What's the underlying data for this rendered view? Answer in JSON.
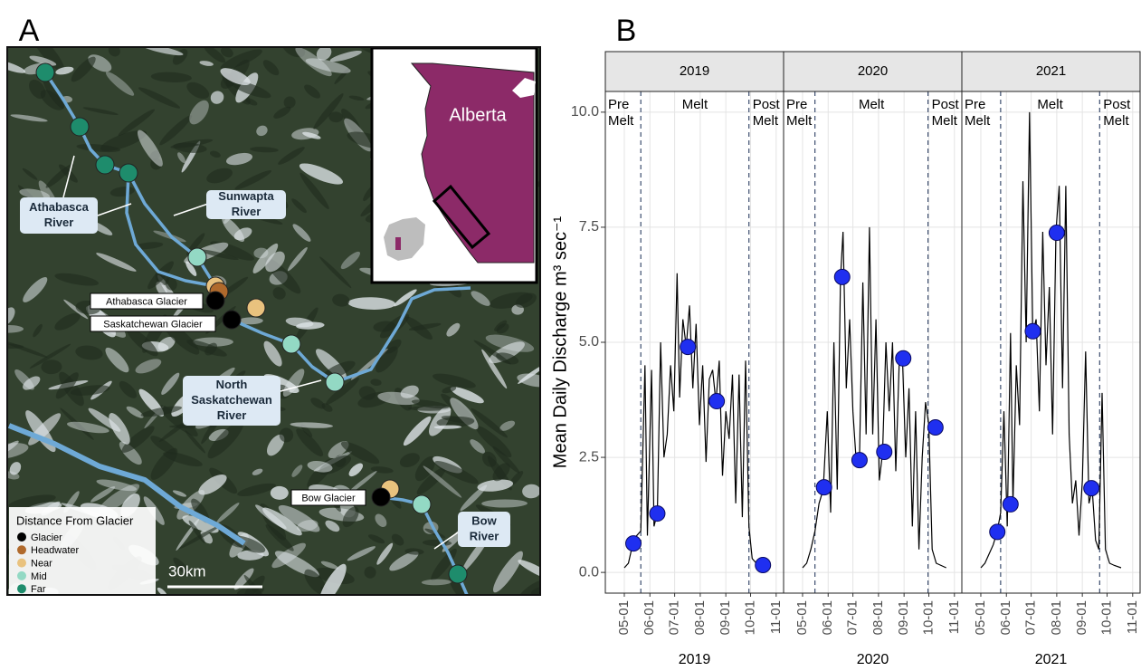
{
  "panels": [
    "A",
    "B"
  ],
  "map": {
    "legend_title": "Distance From Glacier",
    "legend": [
      {
        "name": "Glacier",
        "color": "#000000"
      },
      {
        "name": "Headwater",
        "color": "#b06a2c"
      },
      {
        "name": "Near",
        "color": "#e9c27e"
      },
      {
        "name": "Mid",
        "color": "#93d9c4"
      },
      {
        "name": "Far",
        "color": "#1e8c6c"
      }
    ],
    "scale_label": "30km",
    "inset_label": "Alberta",
    "rivers": [
      [
        "Athabasca",
        "River"
      ],
      [
        "Sunwapta",
        "River"
      ],
      [
        "North",
        "Saskatchewan",
        "River"
      ],
      [
        "Bow",
        "River"
      ]
    ],
    "glaciers": [
      "Athabasca Glacier",
      "Saskatchewan Glacier",
      "Bow Glacier"
    ]
  },
  "chart_data": {
    "type": "line",
    "ylabel": "Mean Daily Discharge m³ sec⁻¹",
    "ylim": [
      -0.45,
      10.45
    ],
    "yticks": [
      {
        "value": 0,
        "label": "0.0"
      },
      2.5,
      {
        "value": 5,
        "label": "5.0"
      },
      7.5,
      {
        "value": 10,
        "label": "10.0"
      }
    ],
    "grid": true,
    "line_color": "#000000",
    "sample_color": "#1f2ff0",
    "divider_color": "#3b4d6e",
    "facets": [
      {
        "title": "2019",
        "xlabel": "2019",
        "xlim": [
          "2019-04-08",
          "2019-11-10"
        ],
        "xticks": [
          {
            "value": "2019-05-01",
            "label": "05-01"
          },
          {
            "value": "2019-06-01",
            "label": "06-01"
          },
          {
            "value": "2019-07-01",
            "label": "07-01"
          },
          {
            "value": "2019-08-01",
            "label": "08-01"
          },
          {
            "value": "2019-09-01",
            "label": "09-01"
          },
          {
            "value": "2019-10-01",
            "label": "10-01"
          },
          {
            "value": "2019-11-01",
            "label": "11-01"
          }
        ],
        "phases": [
          [
            "Pre",
            "Melt"
          ],
          [
            "Melt"
          ],
          [
            "Post",
            "Melt"
          ]
        ],
        "dividers": [
          "2019-05-21",
          "2019-09-29"
        ],
        "x": [
          "2019-05-01",
          "2019-05-06",
          "2019-05-11",
          "2019-05-16",
          "2019-05-21",
          "2019-05-26",
          "2019-05-29",
          "2019-06-03",
          "2019-06-06",
          "2019-06-10",
          "2019-06-14",
          "2019-06-18",
          "2019-06-22",
          "2019-06-26",
          "2019-06-30",
          "2019-07-04",
          "2019-07-07",
          "2019-07-11",
          "2019-07-15",
          "2019-07-19",
          "2019-07-23",
          "2019-07-27",
          "2019-07-31",
          "2019-08-04",
          "2019-08-08",
          "2019-08-12",
          "2019-08-16",
          "2019-08-20",
          "2019-08-24",
          "2019-08-28",
          "2019-09-01",
          "2019-09-05",
          "2019-09-09",
          "2019-09-13",
          "2019-09-17",
          "2019-09-21",
          "2019-09-25",
          "2019-09-29",
          "2019-10-03",
          "2019-10-08",
          "2019-10-14",
          "2019-10-20"
        ],
        "values": [
          0.1,
          0.2,
          0.6,
          0.8,
          0.9,
          4.5,
          0.8,
          4.4,
          1.0,
          1.3,
          5.0,
          2.5,
          3.0,
          4.5,
          3.5,
          6.5,
          3.8,
          5.5,
          4.9,
          5.8,
          4.0,
          5.4,
          3.2,
          4.5,
          2.4,
          4.2,
          4.4,
          3.7,
          4.6,
          2.1,
          3.5,
          2.9,
          4.3,
          1.5,
          4.3,
          1.2,
          4.6,
          1.0,
          0.3,
          0.2,
          0.15,
          0.1
        ],
        "samples": {
          "x": [
            "2019-05-12",
            "2019-06-10",
            "2019-07-17",
            "2019-08-21",
            "2019-10-16"
          ],
          "values": [
            0.63,
            1.28,
            4.9,
            3.72,
            0.16
          ]
        }
      },
      {
        "title": "2020",
        "xlabel": "2020",
        "xlim": [
          "2020-04-08",
          "2020-11-10"
        ],
        "xticks": [
          {
            "value": "2020-05-01",
            "label": "05-01"
          },
          {
            "value": "2020-06-01",
            "label": "06-01"
          },
          {
            "value": "2020-07-01",
            "label": "07-01"
          },
          {
            "value": "2020-08-01",
            "label": "08-01"
          },
          {
            "value": "2020-09-01",
            "label": "09-01"
          },
          {
            "value": "2020-10-01",
            "label": "10-01"
          },
          {
            "value": "2020-11-01",
            "label": "11-01"
          }
        ],
        "phases": [
          [
            "Pre",
            "Melt"
          ],
          [
            "Melt"
          ],
          [
            "Post",
            "Melt"
          ]
        ],
        "dividers": [
          "2020-05-16",
          "2020-09-30"
        ],
        "x": [
          "2020-05-01",
          "2020-05-06",
          "2020-05-11",
          "2020-05-16",
          "2020-05-21",
          "2020-05-26",
          "2020-05-31",
          "2020-06-04",
          "2020-06-08",
          "2020-06-12",
          "2020-06-16",
          "2020-06-19",
          "2020-06-23",
          "2020-06-27",
          "2020-07-01",
          "2020-07-05",
          "2020-07-09",
          "2020-07-13",
          "2020-07-17",
          "2020-07-21",
          "2020-07-25",
          "2020-07-29",
          "2020-08-02",
          "2020-08-06",
          "2020-08-10",
          "2020-08-14",
          "2020-08-18",
          "2020-08-22",
          "2020-08-26",
          "2020-08-30",
          "2020-09-03",
          "2020-09-07",
          "2020-09-11",
          "2020-09-15",
          "2020-09-19",
          "2020-09-23",
          "2020-09-27",
          "2020-10-01",
          "2020-10-05",
          "2020-10-10",
          "2020-10-16",
          "2020-10-22"
        ],
        "values": [
          0.1,
          0.2,
          0.5,
          0.9,
          1.5,
          1.8,
          3.5,
          1.3,
          5.0,
          1.8,
          6.4,
          7.4,
          4.0,
          5.5,
          3.5,
          2.4,
          2.5,
          6.3,
          3.0,
          7.5,
          3.0,
          5.5,
          2.0,
          2.6,
          5.0,
          3.5,
          5.0,
          2.2,
          4.5,
          4.7,
          2.5,
          4.0,
          1.0,
          3.5,
          0.5,
          2.5,
          3.7,
          3.2,
          0.5,
          0.2,
          0.15,
          0.1
        ],
        "samples": {
          "x": [
            "2020-05-27",
            "2020-06-18",
            "2020-07-09",
            "2020-08-08",
            "2020-08-31",
            "2020-10-09"
          ],
          "values": [
            1.85,
            6.42,
            2.44,
            2.62,
            4.65,
            3.15
          ]
        }
      },
      {
        "title": "2021",
        "xlabel": "2021",
        "xlim": [
          "2021-04-08",
          "2021-11-10"
        ],
        "xticks": [
          {
            "value": "2021-05-01",
            "label": "05-01"
          },
          {
            "value": "2021-06-01",
            "label": "06-01"
          },
          {
            "value": "2021-07-01",
            "label": "07-01"
          },
          {
            "value": "2021-08-01",
            "label": "08-01"
          },
          {
            "value": "2021-09-01",
            "label": "09-01"
          },
          {
            "value": "2021-10-01",
            "label": "10-01"
          },
          {
            "value": "2021-11-01",
            "label": "11-01"
          }
        ],
        "phases": [
          [
            "Pre",
            "Melt"
          ],
          [
            "Melt"
          ],
          [
            "Post",
            "Melt"
          ]
        ],
        "dividers": [
          "2021-05-25",
          "2021-09-22"
        ],
        "x": [
          "2021-05-01",
          "2021-05-06",
          "2021-05-11",
          "2021-05-16",
          "2021-05-21",
          "2021-05-25",
          "2021-05-29",
          "2021-06-02",
          "2021-06-06",
          "2021-06-09",
          "2021-06-13",
          "2021-06-17",
          "2021-06-21",
          "2021-06-25",
          "2021-06-29",
          "2021-07-03",
          "2021-07-07",
          "2021-07-11",
          "2021-07-15",
          "2021-07-19",
          "2021-07-23",
          "2021-07-27",
          "2021-07-31",
          "2021-08-04",
          "2021-08-08",
          "2021-08-12",
          "2021-08-16",
          "2021-08-20",
          "2021-08-24",
          "2021-08-28",
          "2021-09-01",
          "2021-09-05",
          "2021-09-09",
          "2021-09-13",
          "2021-09-17",
          "2021-09-21",
          "2021-09-25",
          "2021-09-29",
          "2021-10-04",
          "2021-10-10",
          "2021-10-18"
        ],
        "values": [
          0.1,
          0.2,
          0.4,
          0.6,
          0.9,
          1.3,
          3.5,
          1.0,
          5.2,
          1.5,
          4.5,
          3.2,
          8.5,
          5.0,
          10.0,
          5.2,
          5.5,
          3.5,
          7.4,
          4.5,
          6.2,
          3.0,
          7.4,
          8.4,
          4.0,
          8.4,
          3.0,
          1.5,
          2.0,
          0.8,
          2.0,
          4.8,
          1.5,
          1.8,
          0.7,
          0.5,
          3.9,
          0.5,
          0.2,
          0.15,
          0.1
        ],
        "samples": {
          "x": [
            "2021-05-21",
            "2021-06-06",
            "2021-07-03",
            "2021-08-01",
            "2021-09-12"
          ],
          "values": [
            0.88,
            1.48,
            5.24,
            7.38,
            1.83
          ]
        }
      }
    ]
  }
}
